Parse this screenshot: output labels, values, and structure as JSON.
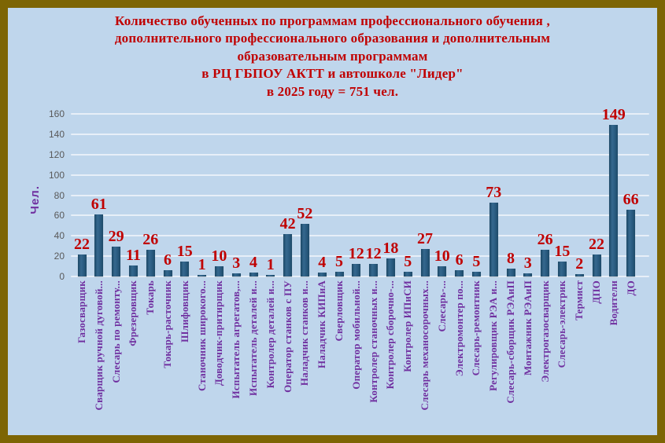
{
  "title": {
    "lines": [
      "Количество обученных по программам профессионального обучения ,",
      "дополнительного профессионального образования и дополнительным",
      "образовательным программам",
      "в РЦ ГБПОУ АКТТ и автошколе \"Лидер\"",
      "в 2025 году = 751 чел."
    ]
  },
  "colors": {
    "frame_border": "#7d6504",
    "background": "#bfd6ec",
    "title_text": "#c00000",
    "value_label": "#c00000",
    "category_label": "#7030a0",
    "y_axis_label": "#7030a0",
    "tick_label": "#595959",
    "bar_dark": "#1b4765",
    "bar_light": "#35688e",
    "gridline": "rgba(255,255,255,0.62)"
  },
  "chart_data": {
    "type": "bar",
    "title": "Количество обученных по программам профессионального обучения , дополнительного профессионального образования и дополнительным образовательным программам в РЦ ГБПОУ АКТТ и автошколе \"Лидер\" в 2025 году = 751 чел.",
    "xlabel": "",
    "ylabel": "Чел.",
    "ylim": [
      0,
      160
    ],
    "yticks": [
      0,
      20,
      40,
      60,
      80,
      100,
      120,
      140,
      160
    ],
    "grid": true,
    "legend": false,
    "total": 751,
    "categories": [
      "Газосварщик",
      "Сварщик ручной дуговой...",
      "Слесарь по ремонту...",
      "Фрезеровщик",
      "Токарь",
      "Токарь-расточник",
      "Шлифовщик",
      "Станочник широкого...",
      "Доводчик-притирщик",
      "Испытатель агрегатов,...",
      "Испытатель деталей и...",
      "Контролер деталей и...",
      "Оператор станков с ПУ",
      "Наладчик станков и...",
      "Наладчик КИПиА",
      "Сверловщик",
      "Оператор мобильной...",
      "Контролер станочных и...",
      "Контролер сборочно-...",
      "Контролер ИПиСИ",
      "Слесарь механосорочных...",
      "Слесарь-...",
      "Электромонтер по...",
      "Слесарь-ремонтник",
      "Регулировщик РЭА и...",
      "Слесарь-сборщик РЭАиП",
      "Монтажник РЭАиП",
      "Электрогазосварщик",
      "Слесарь-электрик",
      "Термист",
      "ДПО",
      "Водители",
      "ДО"
    ],
    "values": [
      22,
      61,
      29,
      11,
      26,
      6,
      15,
      1,
      10,
      3,
      4,
      1,
      42,
      52,
      4,
      5,
      12,
      12,
      18,
      5,
      27,
      10,
      6,
      5,
      73,
      8,
      3,
      26,
      15,
      2,
      22,
      149,
      66
    ]
  }
}
